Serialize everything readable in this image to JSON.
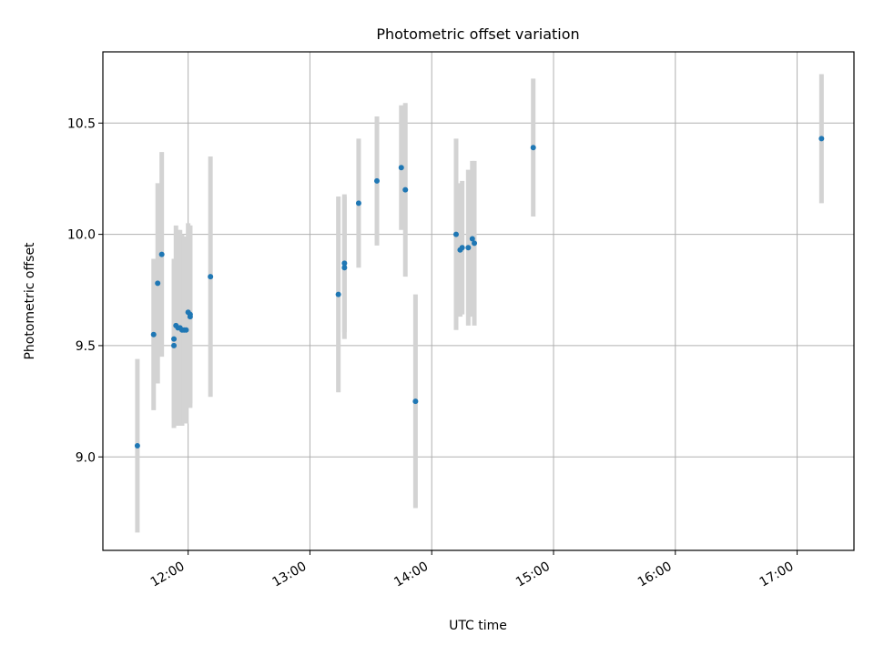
{
  "chart_data": {
    "type": "scatter",
    "title": "Photometric offset variation",
    "xlabel": "UTC time",
    "ylabel": "Photometric offset",
    "x_is_time": true,
    "xlim": [
      "11:18",
      "17:28"
    ],
    "ylim": [
      8.58,
      10.82
    ],
    "xticks": [
      "12:00",
      "13:00",
      "14:00",
      "15:00",
      "16:00",
      "17:00"
    ],
    "yticks": [
      9.0,
      9.5,
      10.0,
      10.5
    ],
    "ytick_labels": [
      "9.0",
      "9.5",
      "10.0",
      "10.5"
    ],
    "grid": true,
    "point_color": "#1f77b4",
    "errorbar_color": "#d3d3d3",
    "series": [
      {
        "points": [
          {
            "x": "11:35",
            "y": 9.05,
            "yerr": 0.39
          },
          {
            "x": "11:43",
            "y": 9.55,
            "yerr": 0.34
          },
          {
            "x": "11:45",
            "y": 9.78,
            "yerr": 0.45
          },
          {
            "x": "11:47",
            "y": 9.91,
            "yerr": 0.46
          },
          {
            "x": "11:53",
            "y": 9.53,
            "yerr": 0.36
          },
          {
            "x": "11:53",
            "y": 9.5,
            "yerr": 0.37
          },
          {
            "x": "11:54",
            "y": 9.59,
            "yerr": 0.45
          },
          {
            "x": "11:55",
            "y": 9.58,
            "yerr": 0.44
          },
          {
            "x": "11:56",
            "y": 9.58,
            "yerr": 0.44
          },
          {
            "x": "11:57",
            "y": 9.57,
            "yerr": 0.43
          },
          {
            "x": "11:58",
            "y": 9.57,
            "yerr": 0.42
          },
          {
            "x": "11:59",
            "y": 9.57,
            "yerr": 0.42
          },
          {
            "x": "12:00",
            "y": 9.65,
            "yerr": 0.4
          },
          {
            "x": "12:01",
            "y": 9.63,
            "yerr": 0.41
          },
          {
            "x": "12:01",
            "y": 9.64,
            "yerr": 0.4
          },
          {
            "x": "12:11",
            "y": 9.81,
            "yerr": 0.54
          },
          {
            "x": "13:14",
            "y": 9.73,
            "yerr": 0.44
          },
          {
            "x": "13:17",
            "y": 9.87,
            "yerr": 0.31
          },
          {
            "x": "13:17",
            "y": 9.85,
            "yerr": 0.32
          },
          {
            "x": "13:24",
            "y": 10.14,
            "yerr": 0.29
          },
          {
            "x": "13:33",
            "y": 10.24,
            "yerr": 0.29
          },
          {
            "x": "13:45",
            "y": 10.3,
            "yerr": 0.28
          },
          {
            "x": "13:47",
            "y": 10.2,
            "yerr": 0.39
          },
          {
            "x": "13:52",
            "y": 9.25,
            "yerr": 0.48
          },
          {
            "x": "14:12",
            "y": 10.0,
            "yerr": 0.43
          },
          {
            "x": "14:14",
            "y": 9.93,
            "yerr": 0.3
          },
          {
            "x": "14:15",
            "y": 9.94,
            "yerr": 0.3
          },
          {
            "x": "14:18",
            "y": 9.94,
            "yerr": 0.35
          },
          {
            "x": "14:20",
            "y": 9.98,
            "yerr": 0.35
          },
          {
            "x": "14:21",
            "y": 9.96,
            "yerr": 0.37
          },
          {
            "x": "14:50",
            "y": 10.39,
            "yerr": 0.31
          },
          {
            "x": "17:12",
            "y": 10.43,
            "yerr": 0.29
          }
        ]
      }
    ]
  }
}
